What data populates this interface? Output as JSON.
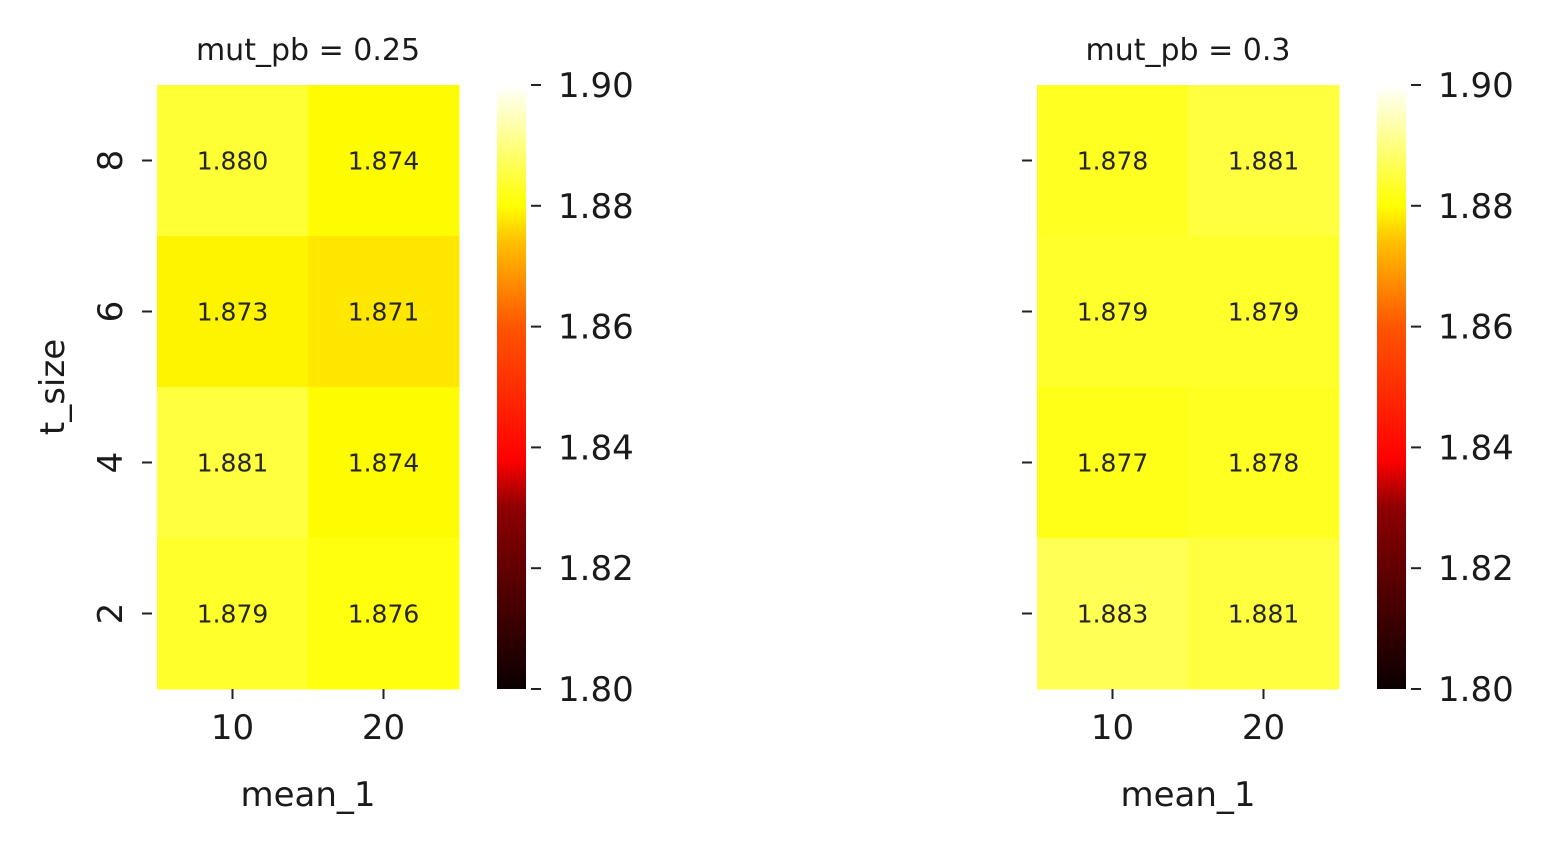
{
  "chart_data": [
    {
      "type": "heatmap",
      "title": "mut_pb = 0.25",
      "xlabel": "mean_1",
      "ylabel": "t_size",
      "x_categories": [
        "10",
        "20"
      ],
      "y_categories": [
        "8",
        "6",
        "4",
        "2"
      ],
      "values": [
        [
          1.88,
          1.874
        ],
        [
          1.873,
          1.871
        ],
        [
          1.881,
          1.874
        ],
        [
          1.879,
          1.876
        ]
      ],
      "annotations": [
        [
          "1.880",
          "1.874"
        ],
        [
          "1.873",
          "1.871"
        ],
        [
          "1.881",
          "1.874"
        ],
        [
          "1.879",
          "1.876"
        ]
      ],
      "colorbar": {
        "min": 1.8,
        "max": 1.9,
        "ticks": [
          "1.80",
          "1.82",
          "1.84",
          "1.86",
          "1.88",
          "1.90"
        ],
        "colormap": "hot"
      },
      "show_ytick_labels": true
    },
    {
      "type": "heatmap",
      "title": "mut_pb = 0.3",
      "xlabel": "mean_1",
      "ylabel": "",
      "x_categories": [
        "10",
        "20"
      ],
      "y_categories": [
        "8",
        "6",
        "4",
        "2"
      ],
      "values": [
        [
          1.878,
          1.881
        ],
        [
          1.879,
          1.879
        ],
        [
          1.877,
          1.878
        ],
        [
          1.883,
          1.881
        ]
      ],
      "annotations": [
        [
          "1.878",
          "1.881"
        ],
        [
          "1.879",
          "1.879"
        ],
        [
          "1.877",
          "1.878"
        ],
        [
          "1.883",
          "1.881"
        ]
      ],
      "colorbar": {
        "min": 1.8,
        "max": 1.9,
        "ticks": [
          "1.80",
          "1.82",
          "1.84",
          "1.86",
          "1.88",
          "1.90"
        ],
        "colormap": "hot"
      },
      "show_ytick_labels": false
    }
  ]
}
